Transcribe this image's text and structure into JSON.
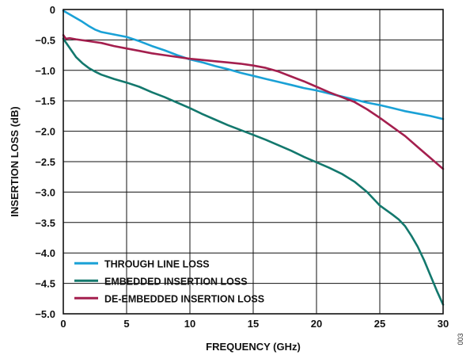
{
  "figure_id": "003",
  "chart_data": {
    "type": "line",
    "title": "",
    "xlabel": "FREQUENCY (GHz)",
    "ylabel": "INSERTION LOSS (dB)",
    "xlim": [
      0,
      30
    ],
    "ylim": [
      -5.0,
      0
    ],
    "xticks": [
      0,
      5,
      10,
      15,
      20,
      25,
      30
    ],
    "xtick_labels": [
      "0",
      "5",
      "10",
      "15",
      "20",
      "25",
      "30"
    ],
    "yticks": [
      0,
      -0.5,
      -1.0,
      -1.5,
      -2.0,
      -2.5,
      -3.0,
      -3.5,
      -4.0,
      -4.5,
      -5.0
    ],
    "ytick_labels": [
      "0",
      "−0.5",
      "−1.0",
      "−1.5",
      "−2.0",
      "−2.5",
      "−3.0",
      "−3.5",
      "−4.0",
      "−4.5",
      "−5.0"
    ],
    "grid": true,
    "legend_position": "bottom-left",
    "series": [
      {
        "name": "THROUGH LINE LOSS",
        "color": "#1aa1d6",
        "x": [
          0,
          0.5,
          1,
          1.5,
          2,
          2.5,
          3,
          4,
          5,
          6,
          7,
          8,
          9,
          10,
          11,
          12,
          13,
          14,
          15,
          16,
          17,
          18,
          19,
          20,
          21,
          22,
          23,
          24,
          25,
          26,
          27,
          28,
          29,
          30
        ],
        "y": [
          -0.02,
          -0.08,
          -0.14,
          -0.2,
          -0.27,
          -0.33,
          -0.37,
          -0.41,
          -0.45,
          -0.52,
          -0.6,
          -0.67,
          -0.75,
          -0.82,
          -0.87,
          -0.93,
          -0.98,
          -1.04,
          -1.09,
          -1.14,
          -1.19,
          -1.24,
          -1.29,
          -1.33,
          -1.38,
          -1.43,
          -1.48,
          -1.53,
          -1.57,
          -1.62,
          -1.67,
          -1.71,
          -1.75,
          -1.8
        ]
      },
      {
        "name": "EMBEDDED INSERTION LOSS",
        "color": "#13786d",
        "x": [
          0,
          0.5,
          1,
          1.5,
          2,
          2.5,
          3,
          4,
          5,
          6,
          7,
          8,
          9,
          10,
          11,
          12,
          13,
          14,
          15,
          16,
          17,
          18,
          19,
          20,
          21,
          22,
          23,
          24,
          25,
          26,
          26.5,
          27,
          27.5,
          28,
          28.5,
          29,
          29.5,
          30
        ],
        "y": [
          -0.48,
          -0.63,
          -0.78,
          -0.88,
          -0.96,
          -1.02,
          -1.07,
          -1.14,
          -1.2,
          -1.27,
          -1.36,
          -1.44,
          -1.53,
          -1.62,
          -1.72,
          -1.81,
          -1.9,
          -1.98,
          -2.06,
          -2.14,
          -2.23,
          -2.32,
          -2.42,
          -2.51,
          -2.6,
          -2.7,
          -2.83,
          -3.0,
          -3.22,
          -3.37,
          -3.45,
          -3.56,
          -3.72,
          -3.9,
          -4.12,
          -4.37,
          -4.62,
          -4.85
        ]
      },
      {
        "name": "DE-EMBEDDED INSERTION LOSS",
        "color": "#a41f4e",
        "x": [
          0,
          0.2,
          0.5,
          1,
          2,
          3,
          4,
          5,
          6,
          7,
          8,
          9,
          10,
          11,
          12,
          13,
          14,
          15,
          16,
          17,
          18,
          19,
          20,
          21,
          22,
          23,
          24,
          25,
          26,
          27,
          28,
          29,
          30
        ],
        "y": [
          -0.42,
          -0.48,
          -0.47,
          -0.49,
          -0.52,
          -0.55,
          -0.6,
          -0.64,
          -0.68,
          -0.72,
          -0.75,
          -0.78,
          -0.81,
          -0.83,
          -0.85,
          -0.87,
          -0.89,
          -0.92,
          -0.96,
          -1.02,
          -1.1,
          -1.18,
          -1.27,
          -1.36,
          -1.44,
          -1.52,
          -1.64,
          -1.78,
          -1.93,
          -2.08,
          -2.26,
          -2.44,
          -2.62
        ]
      }
    ]
  }
}
